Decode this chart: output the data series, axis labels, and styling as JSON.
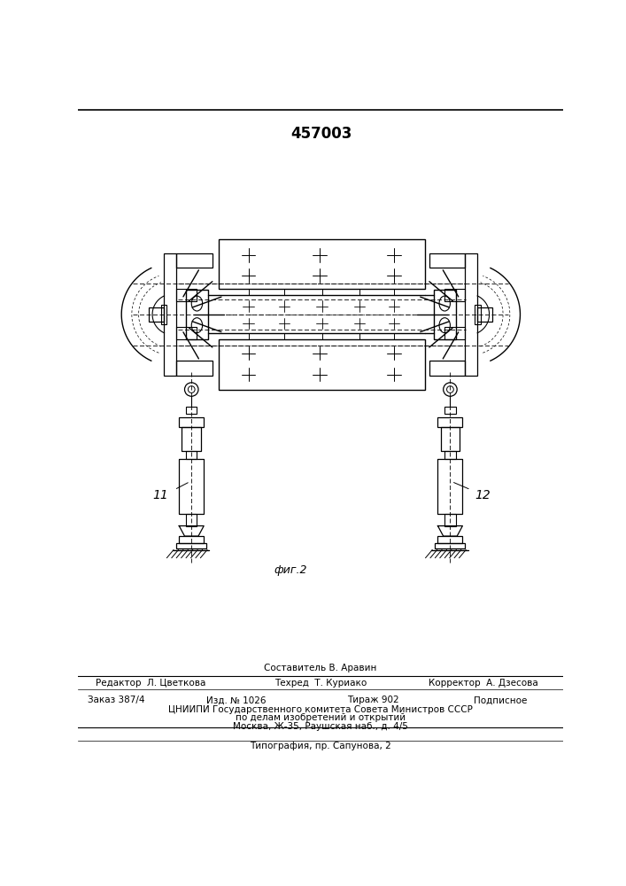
{
  "title": "457003",
  "fig_width": 7.07,
  "fig_height": 10.0,
  "bg_color": "#ffffff",
  "fig_label": "фиг.2",
  "label_11": "11",
  "label_12": "12",
  "footer_composer": "Составитель В. Аравин",
  "footer_line1_left": "Редактор  Л. Цветкова",
  "footer_line1_center": "Техред  Т. Куриако",
  "footer_line1_right": "Корректор  А. Дзесова",
  "footer_line2_col1": "Заказ 387/4",
  "footer_line2_col2": "Изд. № 1026",
  "footer_line2_col3": "Тираж 902",
  "footer_line2_col4": "Подписное",
  "footer_line3": "ЦНИИПИ Государственного комитета Совета Министров СССР",
  "footer_line4": "по делам изобретений и открытий",
  "footer_line5": "Москва, Ж-35, Раушская наб., д. 4/5",
  "footer_line6": "Типография, пр. Сапунова, 2"
}
